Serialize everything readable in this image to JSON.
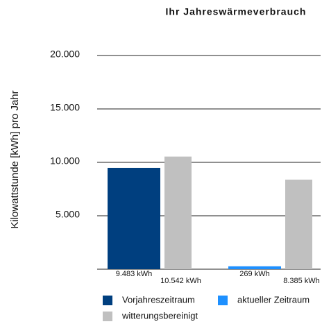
{
  "chart_data": {
    "type": "bar",
    "title": "Ihr Jahreswärmeverbrauch",
    "y_label": "Kilowattstunde [kWh] pro Jahr",
    "categories": [
      null,
      null
    ],
    "series": [
      {
        "name": "Vorjahreszeitraum",
        "color": "#003f7f",
        "values": [
          9483,
          null
        ],
        "value_labels": [
          "9.483 kWh",
          null
        ]
      },
      {
        "name": "aktueller Zeitraum",
        "color": "#1e90ff",
        "values": [
          null,
          269
        ],
        "value_labels": [
          null,
          "269 kWh"
        ]
      },
      {
        "name": "witterungsbereinigt",
        "color": "#c0c0c0",
        "values": [
          10542,
          8385
        ],
        "value_labels": [
          "10.542 kWh",
          "8.385 kWh"
        ]
      }
    ],
    "ylim": [
      0,
      20000
    ],
    "yticks": [
      {
        "value": 5000,
        "label": "5.000"
      },
      {
        "value": 10000,
        "label": "10.000"
      },
      {
        "value": 15000,
        "label": "15.000"
      },
      {
        "value": 20000,
        "label": "20.000"
      }
    ],
    "grid": true,
    "legend": "bottom"
  }
}
